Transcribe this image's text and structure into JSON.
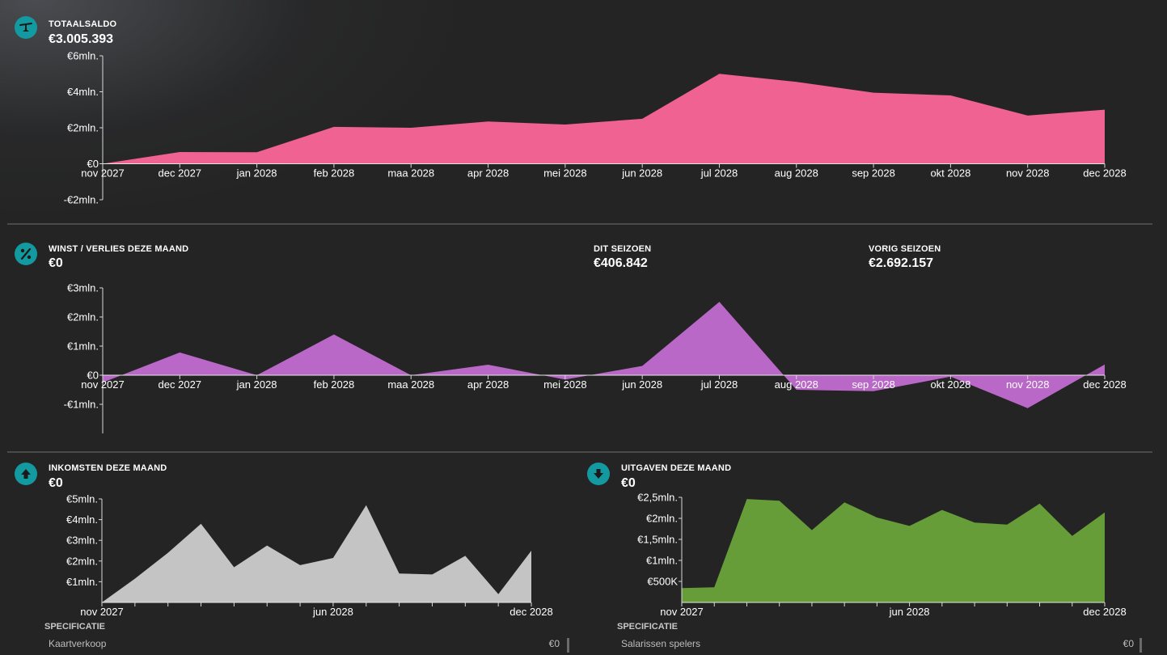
{
  "balance": {
    "label": "TOTAALSALDO",
    "value": "€3.005.393",
    "icon": "balance-scale-icon",
    "chart_data": {
      "type": "area",
      "color": "#f06292",
      "ylim": [
        -2000000,
        6000000
      ],
      "yticks": [
        {
          "v": 6000000,
          "t": "€6mln."
        },
        {
          "v": 4000000,
          "t": "€4mln."
        },
        {
          "v": 2000000,
          "t": "€2mln."
        },
        {
          "v": 0,
          "t": "€0"
        },
        {
          "v": -2000000,
          "t": "-€2mln."
        }
      ],
      "categories": [
        "nov 2027",
        "dec 2027",
        "jan 2028",
        "feb 2028",
        "maa 2028",
        "apr 2028",
        "mei 2028",
        "jun 2028",
        "jul 2028",
        "aug 2028",
        "sep 2028",
        "okt 2028",
        "nov 2028",
        "dec 2028"
      ],
      "values": [
        0,
        650000,
        640000,
        2050000,
        2000000,
        2350000,
        2180000,
        2500000,
        5000000,
        4550000,
        3950000,
        3800000,
        2680000,
        3005393
      ],
      "title": "",
      "xlabel": "",
      "ylabel": ""
    }
  },
  "profit": {
    "label": "WINST / VERLIES DEZE MAAND",
    "value": "€0",
    "icon": "percent-icon",
    "season_label": "DIT SEIZOEN",
    "season_value": "€406.842",
    "prev_label": "VORIG SEIZOEN",
    "prev_value": "€2.692.157",
    "chart_data": {
      "type": "area",
      "color": "#ba68c8",
      "ylim": [
        -2000000,
        3000000
      ],
      "yticks": [
        {
          "v": 3000000,
          "t": "€3mln."
        },
        {
          "v": 2000000,
          "t": "€2mln."
        },
        {
          "v": 1000000,
          "t": "€1mln."
        },
        {
          "v": 0,
          "t": "€0"
        },
        {
          "v": -1000000,
          "t": "-€1mln."
        }
      ],
      "categories": [
        "nov 2027",
        "dec 2027",
        "jan 2028",
        "feb 2028",
        "maa 2028",
        "apr 2028",
        "mei 2028",
        "jun 2028",
        "jul 2028",
        "aug 2028",
        "sep 2028",
        "okt 2028",
        "nov 2028",
        "dec 2028"
      ],
      "values": [
        -250000,
        780000,
        0,
        1400000,
        0,
        360000,
        -150000,
        320000,
        2520000,
        -500000,
        -550000,
        -50000,
        -1130000,
        370000
      ],
      "title": "",
      "xlabel": "",
      "ylabel": ""
    }
  },
  "income": {
    "label": "INKOMSTEN DEZE MAAND",
    "value": "€0",
    "icon": "arrow-up-icon",
    "spec_label": "SPECIFICATIE",
    "spec_rows": [
      {
        "name": "Kaartverkoop",
        "value": "€0"
      }
    ],
    "chart_data": {
      "type": "area",
      "color": "#c4c4c4",
      "ylim": [
        0,
        5000000
      ],
      "yticks": [
        {
          "v": 5000000,
          "t": "€5mln."
        },
        {
          "v": 4000000,
          "t": "€4mln."
        },
        {
          "v": 3000000,
          "t": "€3mln."
        },
        {
          "v": 2000000,
          "t": "€2mln."
        },
        {
          "v": 1000000,
          "t": "€1mln."
        }
      ],
      "categories": [
        "nov 2027",
        "",
        "",
        "",
        "",
        "",
        "",
        "jun 2028",
        "",
        "",
        "",
        "",
        "",
        "dec 2028"
      ],
      "values": [
        0,
        1150000,
        2400000,
        3800000,
        1700000,
        2750000,
        1800000,
        2150000,
        4700000,
        1400000,
        1350000,
        2250000,
        400000,
        2500000
      ],
      "title": "",
      "xlabel": "",
      "ylabel": ""
    }
  },
  "expenses": {
    "label": "UITGAVEN DEZE MAAND",
    "value": "€0",
    "icon": "arrow-down-icon",
    "spec_label": "SPECIFICATIE",
    "spec_rows": [
      {
        "name": "Salarissen spelers",
        "value": "€0"
      }
    ],
    "chart_data": {
      "type": "area",
      "color": "#669d38",
      "ylim": [
        0,
        2500000
      ],
      "yticks": [
        {
          "v": 2500000,
          "t": "€2,5mln."
        },
        {
          "v": 2000000,
          "t": "€2mln."
        },
        {
          "v": 1500000,
          "t": "€1,5mln."
        },
        {
          "v": 1000000,
          "t": "€1mln."
        },
        {
          "v": 500000,
          "t": "€500K"
        }
      ],
      "categories": [
        "nov 2027",
        "",
        "",
        "",
        "",
        "",
        "",
        "jun 2028",
        "",
        "",
        "",
        "",
        "",
        "dec 2028"
      ],
      "values": [
        340000,
        360000,
        2460000,
        2420000,
        1720000,
        2380000,
        2020000,
        1820000,
        2200000,
        1900000,
        1850000,
        2350000,
        1580000,
        2140000
      ],
      "title": "",
      "xlabel": "",
      "ylabel": ""
    }
  }
}
